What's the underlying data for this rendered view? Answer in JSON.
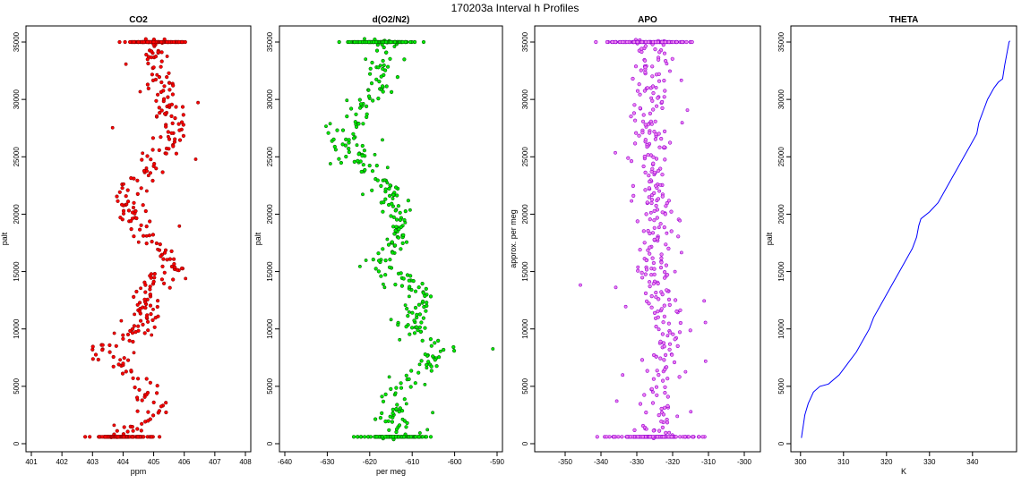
{
  "figure_title": "170203a   Interval h Profiles",
  "chart_data": [
    {
      "type": "scatter",
      "title": "CO2",
      "xlabel": "ppm",
      "ylabel": "palt",
      "xlim": [
        401,
        408
      ],
      "ylim": [
        0,
        35000
      ],
      "xticks": [
        401,
        402,
        403,
        404,
        405,
        406,
        407,
        408
      ],
      "yticks": [
        0,
        5000,
        10000,
        15000,
        20000,
        25000,
        30000,
        35000
      ],
      "colors": {
        "fill": "#ff0000",
        "edge": "#8b0000"
      },
      "profile": [
        [
          0,
          403.6,
          0.5,
          0.4
        ],
        [
          3000,
          405.2,
          0.6,
          0.5
        ],
        [
          6000,
          404.4,
          0.6,
          0.5
        ],
        [
          8000,
          403.4,
          0.8,
          0.6
        ],
        [
          10000,
          404.7,
          0.5,
          0.4
        ],
        [
          13000,
          404.8,
          0.5,
          0.4
        ],
        [
          15500,
          405.6,
          0.6,
          0.5
        ],
        [
          18000,
          404.8,
          0.5,
          0.5
        ],
        [
          21000,
          404.0,
          0.6,
          0.5
        ],
        [
          23000,
          404.6,
          0.6,
          0.5
        ],
        [
          26000,
          405.5,
          0.6,
          0.5
        ],
        [
          28000,
          405.6,
          0.6,
          0.5
        ],
        [
          31000,
          405.2,
          0.5,
          0.4
        ],
        [
          34000,
          405.0,
          0.5,
          0.4
        ],
        [
          35000,
          405.0,
          0.5,
          0.4
        ]
      ]
    },
    {
      "type": "scatter",
      "title": "d(O2/N2)",
      "xlabel": "per meg",
      "ylabel": "palt",
      "xlim": [
        -640,
        -590
      ],
      "ylim": [
        0,
        35000
      ],
      "xticks": [
        -640,
        -630,
        -620,
        -610,
        -600,
        -590
      ],
      "yticks": [
        0,
        5000,
        10000,
        15000,
        20000,
        25000,
        30000,
        35000
      ],
      "colors": {
        "fill": "#00ee00",
        "edge": "#006400"
      },
      "profile": [
        [
          0,
          -614,
          4,
          3
        ],
        [
          2000,
          -615,
          4,
          3
        ],
        [
          4000,
          -614,
          4,
          3
        ],
        [
          6000,
          -609,
          4,
          3
        ],
        [
          8000,
          -603,
          5,
          4
        ],
        [
          10000,
          -610,
          4,
          3
        ],
        [
          13000,
          -607,
          4,
          3
        ],
        [
          15500,
          -618,
          4,
          3
        ],
        [
          18000,
          -613,
          4,
          3
        ],
        [
          21000,
          -614,
          4,
          3
        ],
        [
          23000,
          -618,
          4,
          3
        ],
        [
          25000,
          -624,
          5,
          4
        ],
        [
          27000,
          -626,
          5,
          4
        ],
        [
          29000,
          -622,
          5,
          4
        ],
        [
          31000,
          -617,
          4,
          3
        ],
        [
          34000,
          -617,
          4,
          3
        ],
        [
          35000,
          -617,
          4,
          3
        ]
      ]
    },
    {
      "type": "scatter",
      "title": "APO",
      "xlabel": "",
      "ylabel": "approx. per meg",
      "xlim": [
        -357,
        -297
      ],
      "ylim": [
        0,
        35000
      ],
      "xticks": [
        -350,
        -340,
        -330,
        -320,
        -310,
        -300
      ],
      "yticks": [
        0,
        5000,
        10000,
        15000,
        20000,
        25000,
        30000,
        35000
      ],
      "colors": {
        "fill": "#ee82ee",
        "edge": "#9400d3"
      },
      "profile": [
        [
          0,
          -325,
          6,
          5
        ],
        [
          5000,
          -324,
          6,
          5
        ],
        [
          10000,
          -322,
          6,
          5
        ],
        [
          15000,
          -325,
          6,
          5
        ],
        [
          20000,
          -324,
          6,
          5
        ],
        [
          25000,
          -327,
          6,
          5
        ],
        [
          30000,
          -326,
          6,
          5
        ],
        [
          35000,
          -326,
          6,
          5
        ]
      ]
    },
    {
      "type": "line",
      "title": "THETA",
      "xlabel": "K",
      "ylabel": "palt",
      "xlim": [
        299,
        349
      ],
      "ylim": [
        0,
        35000
      ],
      "xticks": [
        300,
        310,
        320,
        330,
        340
      ],
      "yticks": [
        0,
        5000,
        10000,
        15000,
        20000,
        25000,
        30000,
        35000
      ],
      "color": "#0000ff",
      "series": [
        {
          "name": "theta",
          "x": [
            300.2,
            300.4,
            300.6,
            301.0,
            301.8,
            303.0,
            304.5,
            306.5,
            309.0,
            311.0,
            313.0,
            314.5,
            316.0,
            317.0,
            318.5,
            320.0,
            321.5,
            323.0,
            324.5,
            326.0,
            327.0,
            327.5,
            328.0,
            330.0,
            332.0,
            333.5,
            335.0,
            336.5,
            338.0,
            339.5,
            341.0,
            341.5,
            342.5,
            343.5,
            345.0,
            346.0,
            347.0,
            347.5,
            348.0,
            348.5,
            348.7
          ],
          "y": [
            500,
            1000,
            1500,
            2500,
            3500,
            4500,
            5000,
            5200,
            6000,
            7000,
            8000,
            9000,
            10000,
            11000,
            12000,
            13000,
            14000,
            15000,
            16000,
            17000,
            18000,
            19000,
            19600,
            20200,
            21000,
            22000,
            23000,
            24000,
            25000,
            26000,
            27000,
            28000,
            29000,
            30000,
            31000,
            31500,
            31800,
            33000,
            34000,
            35000,
            35100
          ]
        }
      ]
    }
  ]
}
